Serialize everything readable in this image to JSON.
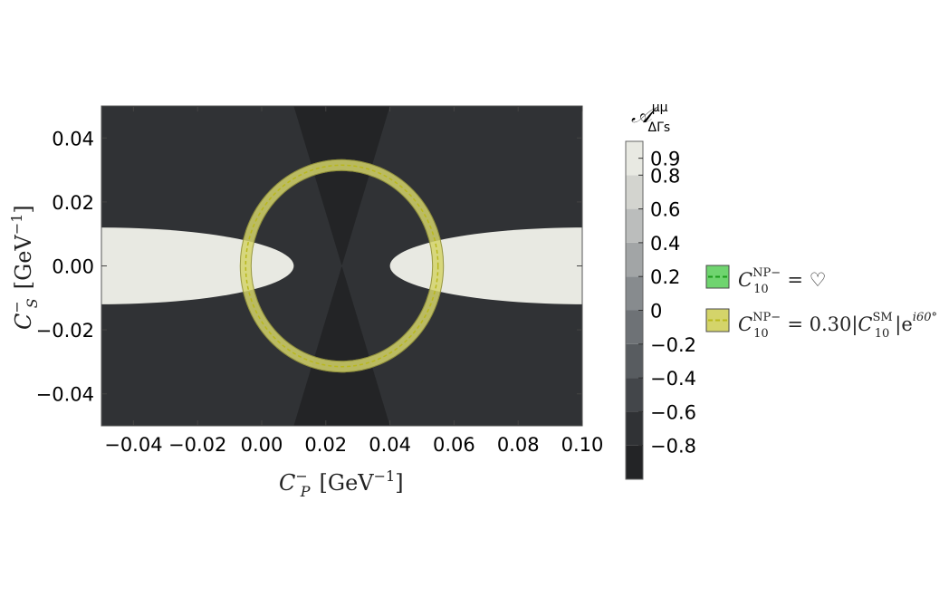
{
  "chart_data": {
    "type": "heatmap",
    "x_ticks": [
      -0.04,
      -0.02,
      0.0,
      0.02,
      0.04,
      0.06,
      0.08,
      0.1
    ],
    "x_tick_labels": [
      "−0.04",
      "−0.02",
      "0.00",
      "0.02",
      "0.04",
      "0.06",
      "0.08",
      "0.10"
    ],
    "y_ticks": [
      0.04,
      0.02,
      0.0,
      -0.02,
      -0.04
    ],
    "y_tick_labels": [
      "0.04",
      "0.02",
      "0.00",
      "−0.02",
      "−0.04"
    ],
    "xlim": [
      -0.05,
      0.1
    ],
    "ylim": [
      -0.05,
      0.05
    ],
    "xlabel": {
      "symbol": "C",
      "sub": "P",
      "sup": "−",
      "unit": "[GeV",
      "unit_sup": "−1",
      "unit_close": "]"
    },
    "ylabel": {
      "symbol": "C",
      "sub": "S",
      "sup": "−",
      "unit": "[GeV",
      "unit_sup": "−1",
      "unit_close": "]"
    },
    "contour": {
      "center_x": 0.025,
      "note_values": "A = (x-0.025)^2 - y^2 normalized, contour steps of 0.2",
      "levels": [
        -0.8,
        -0.6,
        -0.4,
        -0.2,
        0,
        0.2,
        0.4,
        0.6,
        0.8
      ],
      "colors": [
        "#232426",
        "#303235",
        "#43464a",
        "#585c60",
        "#6e7276",
        "#878b8e",
        "#a2a5a6",
        "#bbbdbc",
        "#d3d4cf",
        "#e8e9e2"
      ]
    },
    "colorbar": {
      "title": "𝒜",
      "title_sup": "μμ",
      "title_sub": "ΔΓs",
      "tick_labels": [
        "0.9",
        "0.8",
        "0.6",
        "0.4",
        "0.2",
        "0",
        "−0.2",
        "−0.4",
        "−0.6",
        "−0.8"
      ],
      "tick_values": [
        0.9,
        0.8,
        0.6,
        0.4,
        0.2,
        0,
        -0.2,
        -0.4,
        -0.6,
        -0.8
      ]
    },
    "series": [
      {
        "name_parts": {
          "main": "C",
          "sub": "10",
          "sup": "NP−",
          "rest": " = ♡"
        },
        "color": "#6fd46f",
        "line_color": "#1b9a1b",
        "shape": "none"
      },
      {
        "name_parts": {
          "main": "C",
          "sub": "10",
          "sup": "NP−",
          "rest": " = 0.30|",
          "main2": "C",
          "sub2": "10",
          "sup2": "SM",
          "rest2": "|e",
          "sup3": "i60°"
        },
        "color": "#d4d46a",
        "line_color": "#b8b81c",
        "shape": "ellipse",
        "center": [
          0.025,
          0.0
        ],
        "radius_x": 0.03,
        "radius_y": 0.0315
      }
    ]
  }
}
